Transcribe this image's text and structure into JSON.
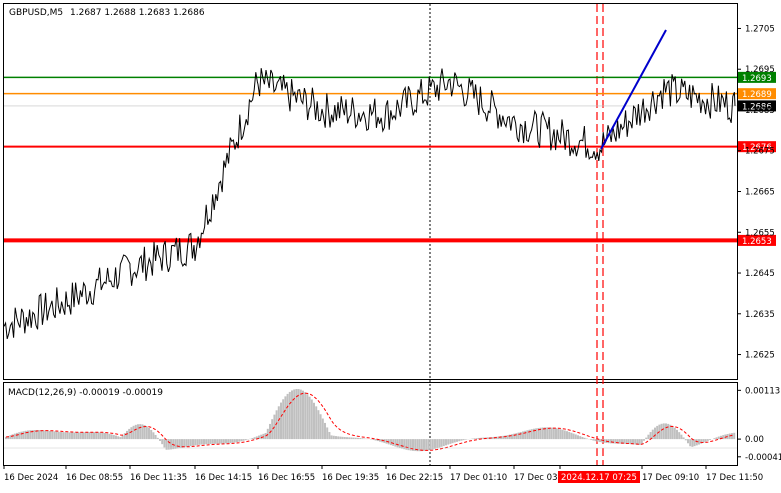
{
  "header": {
    "symbol": "GBPUSD,M5",
    "ohlc": "1.2687 1.2688 1.2683 1.2686"
  },
  "colors": {
    "background": "#ffffff",
    "price_line": "#000000",
    "green_level": "#008000",
    "orange_level": "#ff8c00",
    "red_level": "#ff0000",
    "trend_line": "#0000cc",
    "macd_hist": "#c0c0c0",
    "macd_signal": "#ff0000",
    "current_price_tag": "#000000",
    "time_highlight": "#ff0000"
  },
  "chart_data": [
    {
      "type": "line",
      "series": [
        {
          "name": "GBPUSD,M5",
          "x": [
            "16 Dec 2024",
            "16 Dec 08:55",
            "16 Dec 11:35",
            "16 Dec 14:15",
            "16 Dec 16:55",
            "16 Dec 19:35",
            "16 Dec 22:15",
            "17 Dec 01:10",
            "17 Dec 03:50",
            "2024.12.17 07:25",
            "17 Dec 09:10",
            "17 Dec 11:50"
          ],
          "values": [
            1.2632,
            1.2638,
            1.2646,
            1.2652,
            1.2692,
            1.2685,
            1.2684,
            1.2692,
            1.2682,
            1.2676,
            1.269,
            1.2686
          ]
        }
      ],
      "levels": [
        {
          "label": "1.2693",
          "value": 1.2693,
          "color": "#008000"
        },
        {
          "label": "1.2689",
          "value": 1.2689,
          "color": "#ff8c00"
        },
        {
          "label": "1.2676",
          "value": 1.2676,
          "color": "#ff0000"
        },
        {
          "label": "1.2653",
          "value": 1.2653,
          "color": "#ff0000"
        }
      ],
      "current_price": "1.2686",
      "y_ticks": [
        "1.2705",
        "1.2695",
        "1.2685",
        "1.2675",
        "1.2665",
        "1.2655",
        "1.2645",
        "1.2635",
        "1.2625"
      ],
      "ylim": [
        1.2619,
        1.2711
      ],
      "x_ticks": [
        "16 Dec 2024",
        "16 Dec 08:55",
        "16 Dec 11:35",
        "16 Dec 14:15",
        "16 Dec 16:55",
        "16 Dec 19:35",
        "16 Dec 22:15",
        "17 Dec 01:10",
        "17 Dec 03",
        "2024.12.17 07:25",
        "17 Dec 09:10",
        "17 Dec 11:50"
      ],
      "grid": false
    },
    {
      "type": "bar",
      "title": "MACD(12,26,9) -0.00019 -0.00019",
      "y_ticks": [
        "0.00113",
        "0.00",
        "-0.00041"
      ],
      "ylim": [
        -0.0006,
        0.0013
      ],
      "grid": false
    }
  ]
}
